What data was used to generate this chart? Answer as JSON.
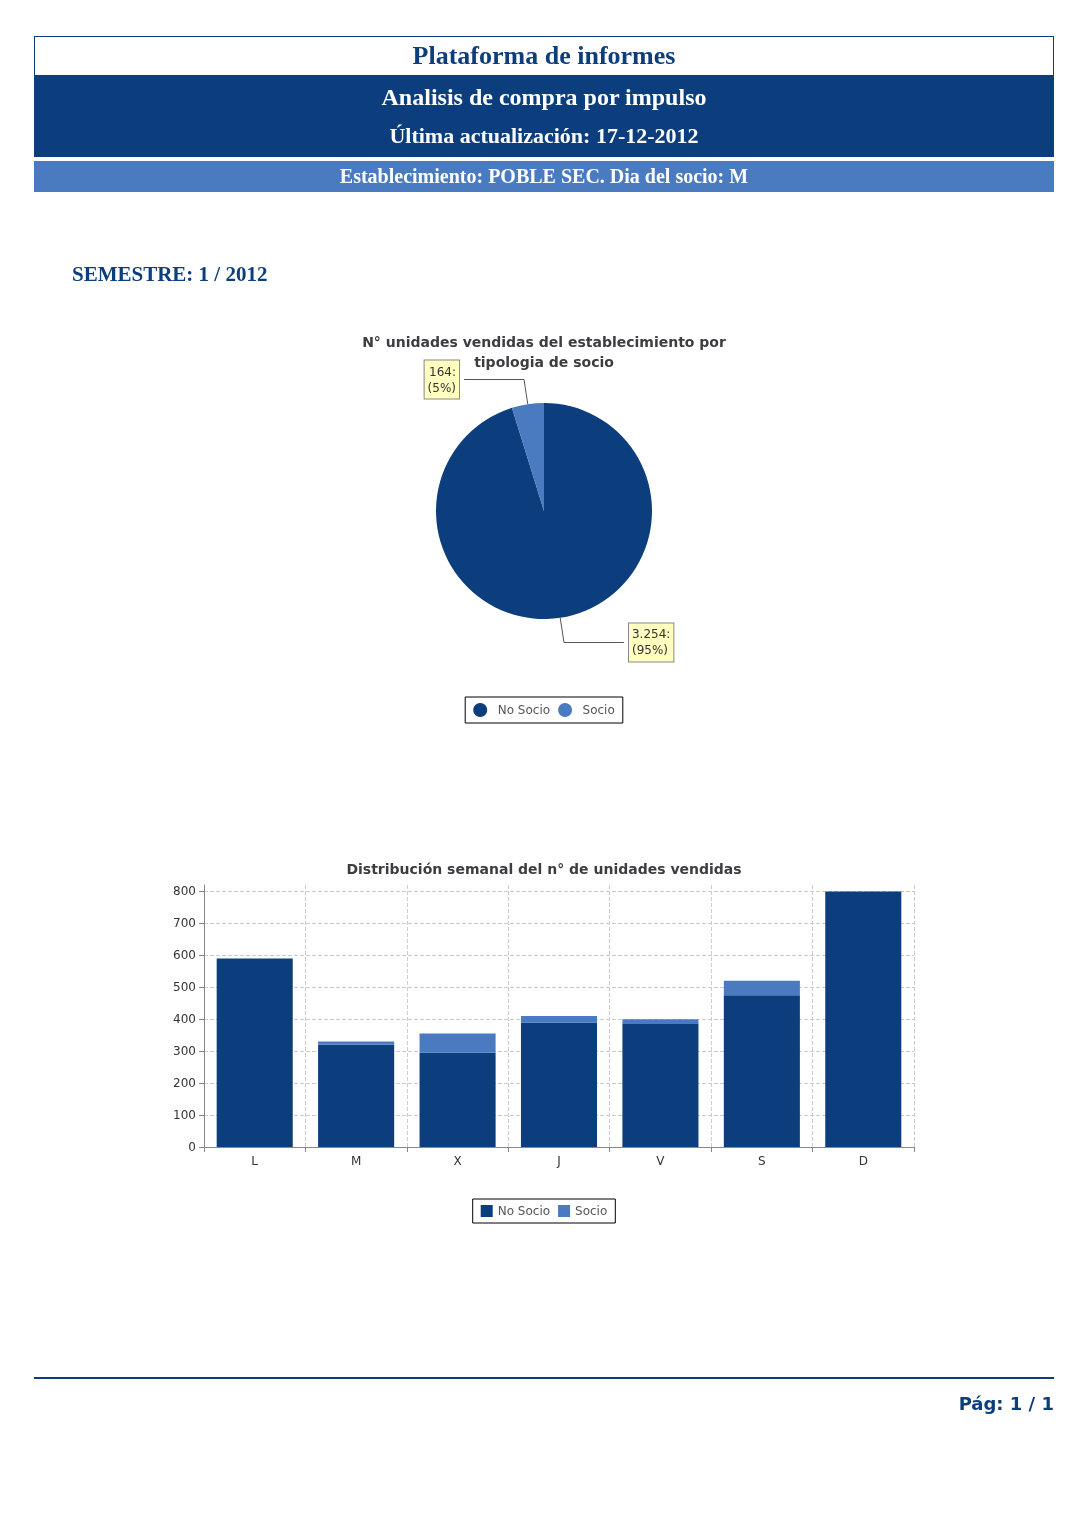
{
  "chart_data": [
    {
      "type": "other",
      "title": "Plataforma de informes",
      "subtitle": "Analisis de compra por impulso",
      "annotations": [
        "Última actualización:  17-12-2012",
        "Establecimiento: POBLE SEC. Dia del socio: M",
        "SEMESTRE: 1 / 2012"
      ]
    },
    {
      "type": "pie",
      "title": "N° unidades vendidas del establecimiento por\ntipologia de socio",
      "categories": [
        "No Socio",
        "Socio"
      ],
      "values": [
        3254,
        164
      ],
      "colors": [
        "#0c3e7e",
        "#4a7bc0"
      ],
      "value_labels": [
        "3.254:\n(95%)",
        "164:\n(5%)"
      ],
      "legend": "bottom"
    },
    {
      "type": "bar",
      "title": "Distribución semanal del n° de unidades vendidas",
      "categories": [
        "L",
        "M",
        "X",
        "J",
        "V",
        "S",
        "D"
      ],
      "stacked": true,
      "series": [
        {
          "name": "No Socio",
          "color": "#0c3e7e",
          "values": [
            590,
            320,
            295,
            390,
            385,
            475,
            800
          ]
        },
        {
          "name": "Socio",
          "color": "#4a7bc0",
          "values": [
            0,
            10,
            60,
            20,
            15,
            45,
            0
          ]
        }
      ],
      "ylim": [
        0,
        820
      ],
      "yticks": [
        0,
        100,
        200,
        300,
        400,
        500,
        600,
        700,
        800
      ],
      "grid": true,
      "legend": "bottom",
      "annotations": [
        "Pág: 1 / 1"
      ]
    }
  ]
}
